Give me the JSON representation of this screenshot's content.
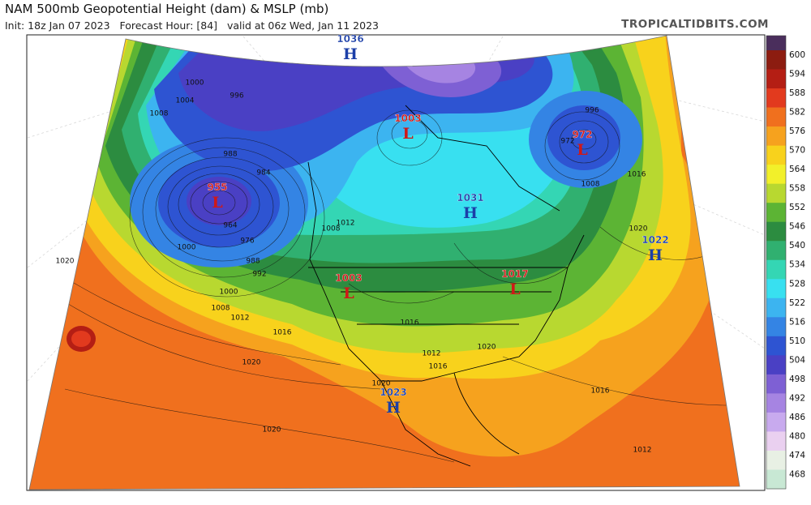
{
  "header": {
    "title": "NAM 500mb Geopotential Height (dam) & MSLP (mb)",
    "subtitle": "Init: 18z Jan 07 2023   Forecast Hour: [84]   valid at 06z Wed, Jan 11 2023",
    "source": "TROPICALTIDBITS.COM"
  },
  "colorbar": {
    "levels": [
      {
        "value": 600,
        "color": "#8c1c10"
      },
      {
        "value": 594,
        "color": "#b41e14"
      },
      {
        "value": 588,
        "color": "#e23a1e"
      },
      {
        "value": 582,
        "color": "#f0701e"
      },
      {
        "value": 576,
        "color": "#f6a21e"
      },
      {
        "value": 570,
        "color": "#f8d21c"
      },
      {
        "value": 564,
        "color": "#f2f02a"
      },
      {
        "value": 558,
        "color": "#b8d830"
      },
      {
        "value": 552,
        "color": "#5cb434"
      },
      {
        "value": 546,
        "color": "#2c8c40"
      },
      {
        "value": 540,
        "color": "#30b070"
      },
      {
        "value": 534,
        "color": "#34d6b4"
      },
      {
        "value": 528,
        "color": "#38e0f0"
      },
      {
        "value": 522,
        "color": "#3cb4f0"
      },
      {
        "value": 516,
        "color": "#3484e4"
      },
      {
        "value": 510,
        "color": "#2e54d2"
      },
      {
        "value": 504,
        "color": "#4a40c4"
      },
      {
        "value": 498,
        "color": "#7e60d4"
      },
      {
        "value": 492,
        "color": "#a684e2"
      },
      {
        "value": 486,
        "color": "#c8aaee"
      },
      {
        "value": 480,
        "color": "#ead0f0"
      },
      {
        "value": 474,
        "color": "#e8f0e4"
      },
      {
        "value": 468,
        "color": "#c8e8d4"
      }
    ]
  },
  "centers": [
    {
      "type": "H",
      "pressure": 1036
    },
    {
      "type": "L",
      "pressure": 1003
    },
    {
      "type": "L",
      "pressure": 972
    },
    {
      "type": "L",
      "pressure": 955
    },
    {
      "type": "H",
      "pressure": 1031
    },
    {
      "type": "H",
      "pressure": 1022
    },
    {
      "type": "L",
      "pressure": 1003
    },
    {
      "type": "L",
      "pressure": 1017
    },
    {
      "type": "H",
      "pressure": 1023
    }
  ],
  "isobar_labels": [
    1000,
    1004,
    1008,
    996,
    988,
    984,
    976,
    972,
    964,
    988,
    992,
    1000,
    1008,
    1012,
    1016,
    1020,
    1020,
    1020,
    1020,
    1016,
    1012,
    1016,
    1020,
    1012,
    1016,
    1008,
    1016,
    1020,
    996,
    1000,
    1008,
    1012
  ]
}
